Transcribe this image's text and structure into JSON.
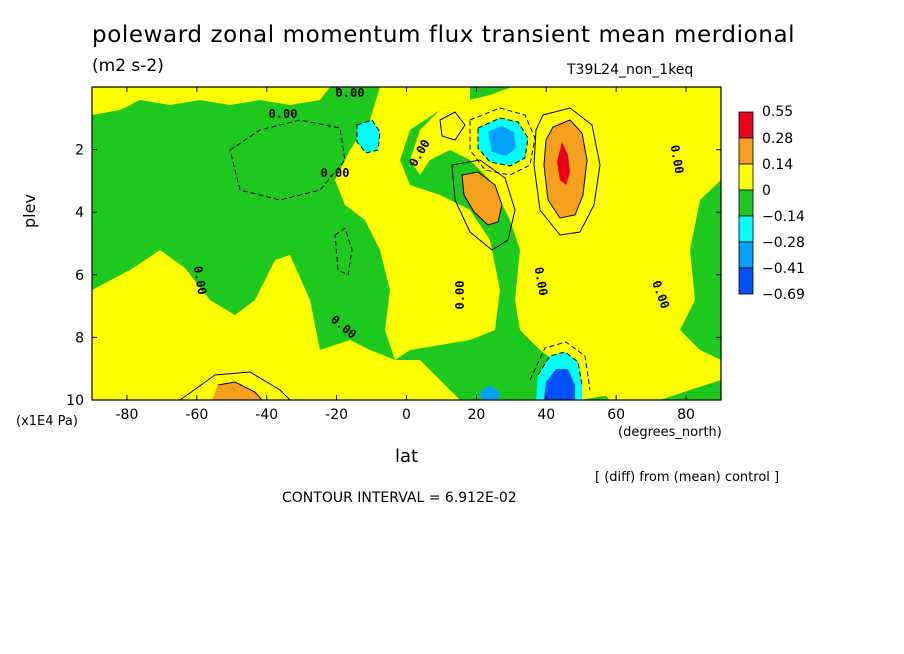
{
  "chart_data": {
    "type": "heatmap",
    "title": "poleward zonal momentum flux transient mean merdional",
    "units": "(m2 s-2)",
    "run_label": "T39L24_non_1keq",
    "xlabel": "lat",
    "x_unit_label": "(degrees_north)",
    "ylabel": "plev",
    "y_multiplier_label": "(x1E4 Pa)",
    "xlim": [
      -90,
      90
    ],
    "ylim": [
      10,
      0
    ],
    "x_ticks": [
      -80,
      -60,
      -40,
      -20,
      0,
      20,
      40,
      60,
      80
    ],
    "y_ticks": [
      2,
      4,
      6,
      8,
      10
    ],
    "contour_interval_text": "CONTOUR INTERVAL = 6.912E-02",
    "comparison_note": "[ (diff) from (mean) control ]",
    "contour_labels": [
      "0.00",
      "0.00",
      "0.00",
      "0.00",
      "0.00",
      "0.00",
      "0.00",
      "0.00",
      "0.00",
      "0.00"
    ],
    "legend": {
      "levels": [
        "0.55",
        "0.28",
        "0.14",
        "0",
        "−0.14",
        "−0.28",
        "−0.41",
        "−0.69"
      ],
      "colors": [
        "#e8001c",
        "#f4a01e",
        "#ffff00",
        "#1ec81e",
        "#00ffff",
        "#00a0ff",
        "#0050ff"
      ]
    },
    "extrema": [
      {
        "sign": "positive",
        "lat": 44,
        "plev": 2.6,
        "approx_value": 0.55
      },
      {
        "sign": "positive",
        "lat": 22,
        "plev": 3.8,
        "approx_value": 0.28
      },
      {
        "sign": "negative",
        "lat": 25,
        "plev": 2.0,
        "approx_value": -0.41
      },
      {
        "sign": "negative",
        "lat": -12,
        "plev": 1.7,
        "approx_value": -0.28
      },
      {
        "sign": "negative",
        "lat": 44,
        "plev": 9.6,
        "approx_value": -0.69
      }
    ]
  }
}
